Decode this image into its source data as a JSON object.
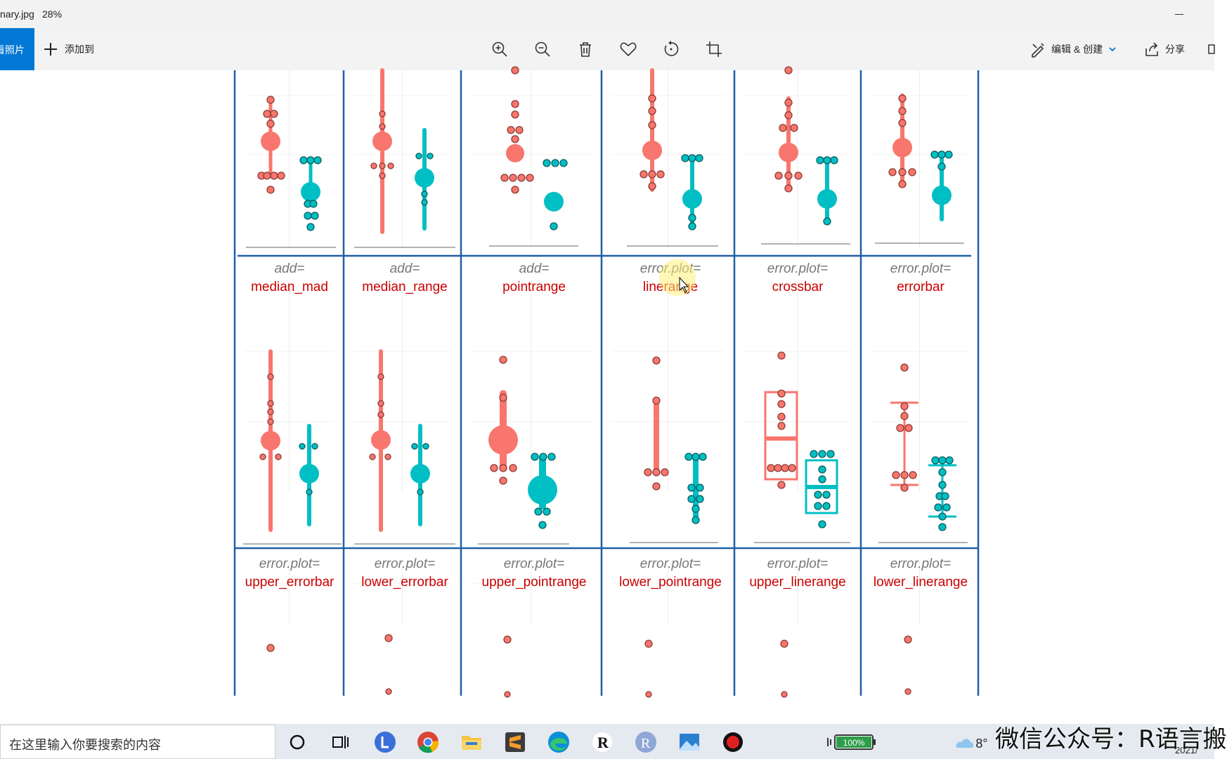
{
  "titlebar": {
    "filename": "nary.jpg",
    "zoom": "28%"
  },
  "toolbar": {
    "back_label": "看照片",
    "add_label": "添加到",
    "edit_label": "编辑 & 创建",
    "share_label": "分享"
  },
  "figure": {
    "colors": {
      "red": "#f8766d",
      "teal": "#00bfc4",
      "border": "#1f5fa8",
      "label": "#cc0000",
      "prefix": "#777777"
    },
    "row1_labels": [
      {
        "prefix": "add=",
        "name": "median_mad"
      },
      {
        "prefix": "add=",
        "name": "median_range"
      },
      {
        "prefix": "add=",
        "name": "pointrange"
      },
      {
        "prefix": "error.plot=",
        "name": "linerange"
      },
      {
        "prefix": "error.plot=",
        "name": "crossbar"
      },
      {
        "prefix": "error.plot=",
        "name": "errorbar"
      }
    ],
    "row2_labels": [
      {
        "prefix": "error.plot=",
        "name": "upper_errorbar"
      },
      {
        "prefix": "error.plot=",
        "name": "lower_errorbar"
      },
      {
        "prefix": "error.plot=",
        "name": "upper_pointrange"
      },
      {
        "prefix": "error.plot=",
        "name": "lower_pointrange"
      },
      {
        "prefix": "error.plot=",
        "name": "upper_linerange"
      },
      {
        "prefix": "error.plot=",
        "name": "lower_linerange"
      }
    ]
  },
  "taskbar": {
    "search_placeholder": "在这里输入你要搜索的内容",
    "battery": "100%",
    "temperature": "8°",
    "clock_fragment": "2021/"
  },
  "watermark": "微信公众号：R语言搬"
}
